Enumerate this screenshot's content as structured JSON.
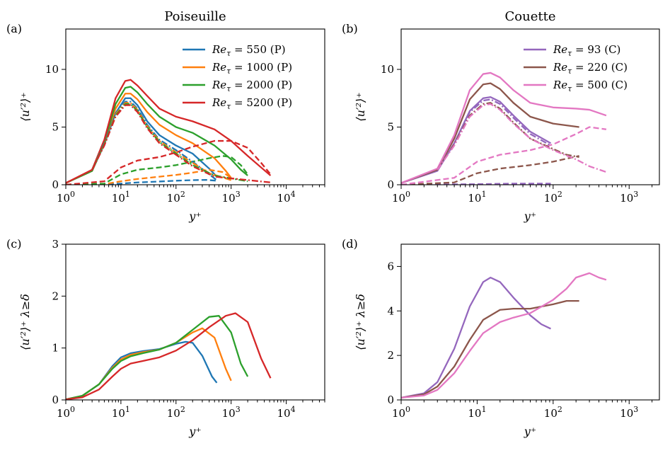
{
  "figure": {
    "col_titles": [
      "Poiseuille",
      "Couette"
    ],
    "colors": {
      "P550": "#1f77b4",
      "P1000": "#ff7f0e",
      "P2000": "#2ca02c",
      "P5200": "#d62728",
      "C93": "#9467bd",
      "C220": "#8c564b",
      "C500": "#e377c2"
    }
  },
  "chart_data": [
    {
      "id": "a",
      "type": "line",
      "panel_label": "(a)",
      "title": "Poiseuille",
      "xlabel": "y⁺",
      "ylabel": "⟨u′²⟩⁺",
      "xscale": "log",
      "xlim": [
        1,
        50000
      ],
      "ylim": [
        0,
        13.5
      ],
      "xticks": [
        {
          "v": 1,
          "b": "10",
          "e": "0"
        },
        {
          "v": 10,
          "b": "10",
          "e": "1"
        },
        {
          "v": 100,
          "b": "10",
          "e": "2"
        },
        {
          "v": 1000,
          "b": "10",
          "e": "3"
        },
        {
          "v": 10000,
          "b": "10",
          "e": "4"
        }
      ],
      "yticks": [
        0,
        5,
        10
      ],
      "legend": "top-right",
      "series": [
        {
          "name": "Re_τ = 550 (P)",
          "legend": {
            "base": "Re",
            "sub": "τ",
            "rest": " = 550 (P)"
          },
          "color": "#1f77b4",
          "style": "solid",
          "x": [
            1,
            3,
            5,
            8,
            12,
            15,
            20,
            30,
            50,
            100,
            200,
            400,
            550
          ],
          "y": [
            0.15,
            1.2,
            3.5,
            6.2,
            7.5,
            7.5,
            6.9,
            5.5,
            4.3,
            3.4,
            2.7,
            1.4,
            0.7
          ]
        },
        {
          "name": "Re_τ = 1000 (P)",
          "legend": {
            "base": "Re",
            "sub": "τ",
            "rest": " = 1000 (P)"
          },
          "color": "#ff7f0e",
          "style": "solid",
          "x": [
            1,
            3,
            5,
            8,
            12,
            15,
            20,
            30,
            50,
            100,
            200,
            500,
            800,
            1000
          ],
          "y": [
            0.15,
            1.2,
            3.6,
            6.6,
            7.9,
            7.9,
            7.4,
            6.3,
            5.2,
            4.3,
            3.6,
            2.3,
            1.2,
            0.6
          ]
        },
        {
          "name": "Re_τ = 2000 (P)",
          "legend": {
            "base": "Re",
            "sub": "τ",
            "rest": " = 2000 (P)"
          },
          "color": "#2ca02c",
          "style": "solid",
          "x": [
            1,
            3,
            5,
            8,
            12,
            15,
            20,
            30,
            50,
            100,
            200,
            500,
            1000,
            1500,
            2000
          ],
          "y": [
            0.15,
            1.2,
            3.7,
            7.0,
            8.4,
            8.5,
            8.0,
            7.0,
            5.9,
            5.0,
            4.5,
            3.4,
            2.2,
            1.3,
            0.8
          ]
        },
        {
          "name": "Re_τ = 5200 (P)",
          "legend": {
            "base": "Re",
            "sub": "τ",
            "rest": " = 5200 (P)"
          },
          "color": "#d62728",
          "style": "solid",
          "x": [
            1,
            3,
            5,
            8,
            12,
            15,
            20,
            30,
            50,
            100,
            200,
            500,
            1000,
            2000,
            3500,
            5200
          ],
          "y": [
            0.15,
            1.3,
            3.9,
            7.5,
            9.0,
            9.1,
            8.6,
            7.7,
            6.6,
            5.9,
            5.5,
            4.8,
            3.8,
            2.5,
            1.5,
            0.8
          ]
        },
        {
          "color": "#1f77b4",
          "style": "dashed",
          "x": [
            1,
            5,
            10,
            20,
            50,
            100,
            200,
            350,
            550
          ],
          "y": [
            0,
            0.02,
            0.1,
            0.2,
            0.28,
            0.35,
            0.4,
            0.42,
            0.35
          ]
        },
        {
          "color": "#ff7f0e",
          "style": "dashed",
          "x": [
            1,
            5,
            10,
            20,
            50,
            100,
            200,
            400,
            700,
            1000
          ],
          "y": [
            0,
            0.05,
            0.3,
            0.5,
            0.7,
            0.85,
            1.05,
            1.3,
            1.1,
            0.6
          ]
        },
        {
          "color": "#2ca02c",
          "style": "dashed",
          "x": [
            1,
            5,
            10,
            20,
            50,
            100,
            200,
            400,
            700,
            1000,
            1500,
            2000
          ],
          "y": [
            0,
            0.1,
            0.9,
            1.3,
            1.5,
            1.7,
            2.0,
            2.3,
            2.5,
            2.4,
            1.7,
            0.9
          ]
        },
        {
          "color": "#d62728",
          "style": "dashed",
          "x": [
            1,
            5,
            10,
            20,
            50,
            100,
            200,
            500,
            1000,
            2000,
            3500,
            5200
          ],
          "y": [
            0,
            0.3,
            1.5,
            2.1,
            2.4,
            2.8,
            3.3,
            3.8,
            3.8,
            3.2,
            1.9,
            0.9
          ]
        },
        {
          "color": "#1f77b4",
          "style": "dashdot",
          "x": [
            3,
            5,
            8,
            12,
            15,
            20,
            30,
            50,
            100,
            200,
            400,
            550
          ],
          "y": [
            1.3,
            3.6,
            6.2,
            7.2,
            7.2,
            6.6,
            5.2,
            3.9,
            3.0,
            2.0,
            0.9,
            0.4
          ]
        },
        {
          "color": "#ff7f0e",
          "style": "dashdot",
          "x": [
            3,
            5,
            8,
            12,
            15,
            20,
            30,
            50,
            100,
            200,
            400,
            1000
          ],
          "y": [
            1.3,
            3.5,
            6.1,
            7.1,
            7.1,
            6.5,
            5.1,
            3.8,
            2.8,
            1.9,
            1.0,
            0.4
          ]
        },
        {
          "color": "#2ca02c",
          "style": "dashdot",
          "x": [
            3,
            5,
            8,
            12,
            15,
            20,
            30,
            50,
            100,
            200,
            500,
            2000
          ],
          "y": [
            1.3,
            3.5,
            6.0,
            7.0,
            7.0,
            6.4,
            5.0,
            3.7,
            2.7,
            1.7,
            0.8,
            0.3
          ]
        },
        {
          "color": "#d62728",
          "style": "dashdot",
          "x": [
            3,
            5,
            8,
            12,
            15,
            20,
            30,
            50,
            100,
            200,
            500,
            5200
          ],
          "y": [
            1.3,
            3.4,
            5.9,
            6.9,
            6.9,
            6.3,
            4.9,
            3.6,
            2.6,
            1.6,
            0.7,
            0.2
          ]
        }
      ]
    },
    {
      "id": "b",
      "type": "line",
      "panel_label": "(b)",
      "title": "Couette",
      "xlabel": "y⁺",
      "ylabel": "⟨u′²⟩⁺",
      "xscale": "log",
      "xlim": [
        1,
        2500
      ],
      "ylim": [
        0,
        13.5
      ],
      "xticks": [
        {
          "v": 1,
          "b": "10",
          "e": "0"
        },
        {
          "v": 10,
          "b": "10",
          "e": "1"
        },
        {
          "v": 100,
          "b": "10",
          "e": "2"
        },
        {
          "v": 1000,
          "b": "10",
          "e": "3"
        }
      ],
      "yticks": [
        0,
        5,
        10
      ],
      "legend": "top-right",
      "series": [
        {
          "name": "Re_τ = 93 (C)",
          "legend": {
            "base": "Re",
            "sub": "τ",
            "rest": " = 93 (C)"
          },
          "color": "#9467bd",
          "style": "solid",
          "x": [
            1,
            3,
            5,
            8,
            12,
            15,
            20,
            30,
            50,
            93
          ],
          "y": [
            0.15,
            1.2,
            3.6,
            6.4,
            7.5,
            7.6,
            7.2,
            6.0,
            4.6,
            3.6
          ]
        },
        {
          "name": "Re_τ = 220 (C)",
          "legend": {
            "base": "Re",
            "sub": "τ",
            "rest": " = 220 (C)"
          },
          "color": "#8c564b",
          "style": "solid",
          "x": [
            1,
            3,
            5,
            8,
            12,
            15,
            20,
            30,
            50,
            100,
            220
          ],
          "y": [
            0.15,
            1.3,
            4.0,
            7.4,
            8.7,
            8.8,
            8.3,
            7.1,
            5.9,
            5.3,
            5.0
          ]
        },
        {
          "name": "Re_τ = 500 (C)",
          "legend": {
            "base": "Re",
            "sub": "τ",
            "rest": " = 500 (C)"
          },
          "color": "#e377c2",
          "style": "solid",
          "x": [
            1,
            3,
            5,
            8,
            12,
            15,
            20,
            30,
            50,
            100,
            200,
            300,
            500
          ],
          "y": [
            0.15,
            1.4,
            4.3,
            8.2,
            9.6,
            9.7,
            9.3,
            8.2,
            7.1,
            6.7,
            6.6,
            6.5,
            6.0
          ]
        },
        {
          "color": "#9467bd",
          "style": "dashed",
          "x": [
            1,
            10,
            30,
            93
          ],
          "y": [
            0,
            0.05,
            0.1,
            0.1
          ]
        },
        {
          "color": "#8c564b",
          "style": "dashed",
          "x": [
            1,
            5,
            10,
            20,
            50,
            100,
            220
          ],
          "y": [
            0,
            0.2,
            1.0,
            1.4,
            1.7,
            2.0,
            2.5
          ]
        },
        {
          "color": "#e377c2",
          "style": "dashed",
          "x": [
            1,
            5,
            10,
            20,
            50,
            100,
            200,
            300,
            500
          ],
          "y": [
            0,
            0.6,
            2.0,
            2.6,
            3.0,
            3.5,
            4.4,
            5.0,
            4.8
          ]
        },
        {
          "color": "#9467bd",
          "style": "dashdot",
          "x": [
            3,
            5,
            8,
            12,
            15,
            20,
            30,
            50,
            93
          ],
          "y": [
            1.3,
            3.6,
            6.3,
            7.3,
            7.4,
            7.0,
            5.8,
            4.4,
            3.4
          ]
        },
        {
          "color": "#8c564b",
          "style": "dashdot",
          "x": [
            3,
            5,
            8,
            12,
            15,
            20,
            30,
            50,
            100,
            150,
            220
          ],
          "y": [
            1.3,
            3.5,
            6.0,
            7.0,
            7.1,
            6.6,
            5.4,
            4.0,
            3.1,
            2.6,
            2.4
          ]
        },
        {
          "color": "#e377c2",
          "style": "dashdot",
          "x": [
            3,
            5,
            8,
            12,
            15,
            20,
            30,
            50,
            100,
            200,
            300,
            500
          ],
          "y": [
            1.3,
            3.4,
            5.9,
            6.9,
            7.0,
            6.5,
            5.3,
            4.0,
            3.0,
            2.2,
            1.6,
            1.1
          ]
        }
      ]
    },
    {
      "id": "c",
      "type": "line",
      "panel_label": "(c)",
      "title": "",
      "xlabel": "y⁺",
      "ylabel": "⟨u′²⟩⁺ λ≥δ",
      "xscale": "log",
      "xlim": [
        1,
        50000
      ],
      "ylim": [
        0,
        3
      ],
      "xticks": [
        {
          "v": 1,
          "b": "10",
          "e": "0"
        },
        {
          "v": 10,
          "b": "10",
          "e": "1"
        },
        {
          "v": 100,
          "b": "10",
          "e": "2"
        },
        {
          "v": 1000,
          "b": "10",
          "e": "3"
        },
        {
          "v": 10000,
          "b": "10",
          "e": "4"
        }
      ],
      "yticks": [
        0,
        1,
        2,
        3
      ],
      "series": [
        {
          "name": "Re_τ = 550 (P)",
          "color": "#1f77b4",
          "style": "solid",
          "x": [
            1,
            2,
            4,
            7,
            10,
            15,
            25,
            50,
            100,
            150,
            200,
            300,
            450,
            550
          ],
          "y": [
            0.01,
            0.08,
            0.3,
            0.65,
            0.82,
            0.9,
            0.94,
            0.98,
            1.08,
            1.12,
            1.1,
            0.85,
            0.45,
            0.33
          ]
        },
        {
          "name": "Re_τ = 1000 (P)",
          "color": "#ff7f0e",
          "style": "solid",
          "x": [
            1,
            2,
            4,
            7,
            10,
            15,
            25,
            50,
            100,
            200,
            300,
            500,
            800,
            1000
          ],
          "y": [
            0.01,
            0.08,
            0.3,
            0.62,
            0.78,
            0.87,
            0.92,
            0.97,
            1.1,
            1.3,
            1.38,
            1.2,
            0.6,
            0.37
          ]
        },
        {
          "name": "Re_τ = 2000 (P)",
          "color": "#2ca02c",
          "style": "solid",
          "x": [
            1,
            2,
            4,
            7,
            10,
            15,
            25,
            50,
            100,
            200,
            400,
            600,
            1000,
            1500,
            2000
          ],
          "y": [
            0.01,
            0.08,
            0.3,
            0.6,
            0.75,
            0.84,
            0.9,
            0.97,
            1.1,
            1.35,
            1.6,
            1.62,
            1.3,
            0.7,
            0.45
          ]
        },
        {
          "name": "Re_τ = 5200 (P)",
          "color": "#d62728",
          "style": "solid",
          "x": [
            1,
            2,
            4,
            7,
            10,
            15,
            25,
            50,
            100,
            200,
            400,
            800,
            1200,
            2000,
            3500,
            5200
          ],
          "y": [
            0.01,
            0.05,
            0.2,
            0.45,
            0.6,
            0.7,
            0.75,
            0.82,
            0.95,
            1.15,
            1.4,
            1.62,
            1.67,
            1.5,
            0.8,
            0.42
          ]
        }
      ]
    },
    {
      "id": "d",
      "type": "line",
      "panel_label": "(d)",
      "title": "",
      "xlabel": "y⁺",
      "ylabel": "⟨u′²⟩⁺ λ≥δ",
      "xscale": "log",
      "xlim": [
        1,
        2500
      ],
      "ylim": [
        0,
        7
      ],
      "xticks": [
        {
          "v": 1,
          "b": "10",
          "e": "0"
        },
        {
          "v": 10,
          "b": "10",
          "e": "1"
        },
        {
          "v": 100,
          "b": "10",
          "e": "2"
        },
        {
          "v": 1000,
          "b": "10",
          "e": "3"
        }
      ],
      "yticks": [
        0,
        2,
        4,
        6
      ],
      "series": [
        {
          "name": "Re_τ = 93 (C)",
          "color": "#9467bd",
          "style": "solid",
          "x": [
            1,
            2,
            3,
            5,
            8,
            12,
            15,
            20,
            30,
            50,
            70,
            93
          ],
          "y": [
            0.1,
            0.3,
            0.8,
            2.3,
            4.2,
            5.3,
            5.5,
            5.3,
            4.6,
            3.8,
            3.4,
            3.2
          ]
        },
        {
          "name": "Re_τ = 220 (C)",
          "color": "#8c564b",
          "style": "solid",
          "x": [
            1,
            2,
            3,
            5,
            8,
            12,
            20,
            30,
            50,
            100,
            150,
            220
          ],
          "y": [
            0.1,
            0.25,
            0.6,
            1.5,
            2.7,
            3.6,
            4.05,
            4.1,
            4.1,
            4.3,
            4.45,
            4.45
          ]
        },
        {
          "name": "Re_τ = 500 (C)",
          "color": "#e377c2",
          "style": "solid",
          "x": [
            1,
            2,
            3,
            5,
            8,
            12,
            20,
            30,
            50,
            100,
            150,
            200,
            300,
            400,
            500
          ],
          "y": [
            0.1,
            0.2,
            0.45,
            1.2,
            2.2,
            3.0,
            3.5,
            3.7,
            3.9,
            4.5,
            5.0,
            5.5,
            5.7,
            5.5,
            5.4
          ]
        }
      ]
    }
  ]
}
